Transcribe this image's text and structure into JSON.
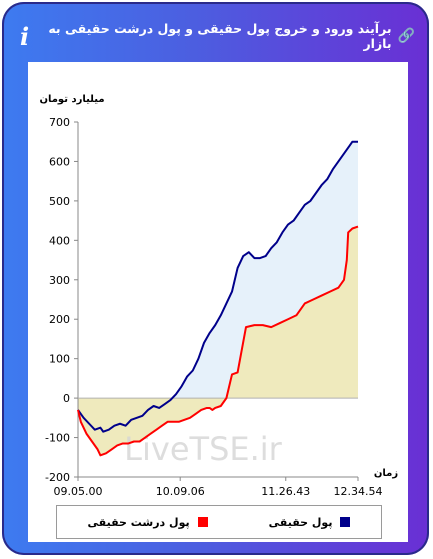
{
  "header": {
    "title": "برآیند ورود و خروج پول حقیقی و پول درشت حقیقی به بازار",
    "link_icon": "link-icon",
    "info_icon": "info-icon",
    "info_glyph": "i",
    "link_glyph": "🔗"
  },
  "watermark": "LiveTSE.ir",
  "chart_data": {
    "type": "area",
    "ylabel": "میلیارد تومان",
    "xlabel": "زمان",
    "ylim": [
      -200,
      700
    ],
    "yticks": [
      -200,
      -100,
      0,
      100,
      200,
      300,
      400,
      500,
      600,
      700
    ],
    "xlim": [
      0,
      100
    ],
    "x_tick_labels": [
      {
        "x": 0,
        "label": "09.05.00"
      },
      {
        "x": 36.5,
        "label": "10.09.06"
      },
      {
        "x": 74.2,
        "label": "11.26.43"
      },
      {
        "x": 100,
        "label": "12.34.54"
      }
    ],
    "grid": false,
    "legend_placement": "bottom",
    "series": [
      {
        "name": "پول حقیقی",
        "color": "#00008b",
        "fill": "#e6f1fa",
        "x": [
          0,
          2,
          4,
          6,
          8,
          9,
          11,
          13,
          15,
          17,
          19,
          21,
          23,
          25,
          27,
          29,
          31,
          33,
          35,
          37,
          39,
          41,
          43,
          45,
          47,
          49,
          51,
          53,
          55,
          57,
          59,
          61,
          63,
          65,
          67,
          69,
          71,
          73,
          75,
          77,
          79,
          81,
          83,
          85,
          87,
          89,
          91,
          93,
          95,
          97,
          98,
          100
        ],
        "values": [
          -30,
          -50,
          -65,
          -80,
          -75,
          -85,
          -80,
          -70,
          -65,
          -70,
          -55,
          -50,
          -45,
          -30,
          -20,
          -25,
          -15,
          -5,
          10,
          30,
          55,
          70,
          100,
          140,
          165,
          185,
          210,
          240,
          270,
          330,
          360,
          370,
          355,
          355,
          360,
          380,
          395,
          420,
          440,
          450,
          470,
          490,
          500,
          520,
          540,
          555,
          580,
          600,
          620,
          640,
          650,
          650
        ]
      },
      {
        "name": "پول درشت حقیقی",
        "color": "#ff0000",
        "fill": "#efeabd",
        "x": [
          0,
          1,
          3,
          5,
          7,
          8,
          10,
          12,
          14,
          16,
          18,
          20,
          22,
          24,
          26,
          28,
          30,
          32,
          34,
          36,
          38,
          40,
          42,
          44,
          46,
          47,
          48,
          49,
          51,
          53,
          55,
          57,
          60,
          63,
          66,
          69,
          72,
          75,
          78,
          81,
          84,
          87,
          90,
          93,
          95,
          96,
          96.5,
          98,
          100
        ],
        "values": [
          -30,
          -60,
          -90,
          -110,
          -130,
          -145,
          -140,
          -130,
          -120,
          -115,
          -115,
          -110,
          -110,
          -100,
          -90,
          -80,
          -70,
          -60,
          -60,
          -60,
          -55,
          -50,
          -40,
          -30,
          -25,
          -25,
          -30,
          -25,
          -20,
          0,
          60,
          65,
          180,
          185,
          185,
          180,
          190,
          200,
          210,
          240,
          250,
          260,
          270,
          280,
          300,
          350,
          420,
          430,
          435
        ]
      }
    ]
  }
}
